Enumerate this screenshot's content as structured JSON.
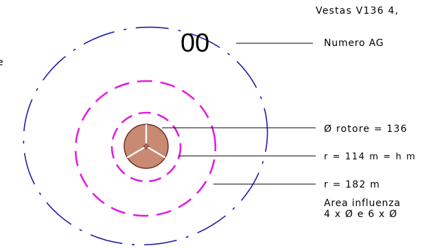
{
  "model_label": "Vestas V136 4,",
  "turbine_number": "00",
  "numero_label": "Numero AG",
  "rotor_diameter_label": "Ø  rotore = 136",
  "radius_hub_label": "r = 114 m = h m",
  "radius_182_label": "r  = 182 m",
  "area_label": "Area influenza",
  "area_formula": "4 x Ø e 6 x Ø",
  "left_edge_label": "e",
  "colors": {
    "outer_circle": "#1a1aa8",
    "inner_circles": "#e21ce2",
    "rotor_fill": "#c98a74",
    "rotor_stroke": "#6b2b1d",
    "leader_lines": "#000000"
  }
}
